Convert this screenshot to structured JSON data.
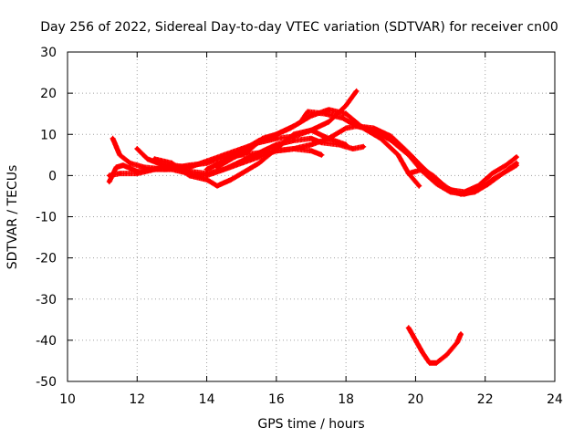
{
  "chart_data": {
    "type": "scatter",
    "title": "Day 256 of 2022, Sidereal Day-to-day VTEC variation (SDTVAR) for receiver cn00",
    "xlabel": "GPS time / hours",
    "ylabel": "SDTVAR / TECUs",
    "xlim": [
      10,
      24
    ],
    "ylim": [
      -50,
      30
    ],
    "xticks": [
      10,
      12,
      14,
      16,
      18,
      20,
      22,
      24
    ],
    "yticks": [
      -50,
      -40,
      -30,
      -20,
      -10,
      0,
      10,
      20,
      30
    ],
    "xtick_labels": [
      "10",
      "12",
      "14",
      "16",
      "18",
      "20",
      "22",
      "24"
    ],
    "ytick_labels": [
      "-50",
      "-40",
      "-30",
      "-20",
      "-10",
      "0",
      "10",
      "20",
      "30"
    ],
    "grid": true,
    "marker": "+",
    "color": "#ff0000",
    "series": [
      {
        "name": "track-1",
        "points": [
          [
            11.2,
            0
          ],
          [
            11.5,
            0.5
          ],
          [
            12.0,
            0.5
          ],
          [
            12.5,
            1.5
          ],
          [
            13.0,
            1.5
          ],
          [
            13.5,
            0.5
          ],
          [
            14.0,
            0
          ],
          [
            14.5,
            1.5
          ],
          [
            15.0,
            3.5
          ],
          [
            15.5,
            5.5
          ],
          [
            16.0,
            7.5
          ],
          [
            16.5,
            8.5
          ],
          [
            17.0,
            9.0
          ],
          [
            17.3,
            8.0
          ],
          [
            17.8,
            7.5
          ],
          [
            18.2,
            6.5
          ],
          [
            18.5,
            7.0
          ]
        ]
      },
      {
        "name": "track-2",
        "points": [
          [
            11.2,
            -1.5
          ],
          [
            11.4,
            2.0
          ],
          [
            11.6,
            2.5
          ],
          [
            12.0,
            1.0
          ],
          [
            12.5,
            1.5
          ],
          [
            13.0,
            2.5
          ],
          [
            13.5,
            2.0
          ],
          [
            14.0,
            3.5
          ],
          [
            14.5,
            5.0
          ],
          [
            15.0,
            6.5
          ],
          [
            15.5,
            8.0
          ],
          [
            16.0,
            9.0
          ],
          [
            16.5,
            9.5
          ],
          [
            17.0,
            11.0
          ],
          [
            17.5,
            13.0
          ],
          [
            18.0,
            17.0
          ],
          [
            18.3,
            20.5
          ]
        ]
      },
      {
        "name": "track-3",
        "points": [
          [
            11.3,
            9.0
          ],
          [
            11.5,
            5.0
          ],
          [
            11.8,
            3.0
          ],
          [
            12.2,
            2.0
          ],
          [
            12.8,
            1.5
          ],
          [
            13.5,
            2.5
          ],
          [
            14.0,
            3.0
          ],
          [
            14.5,
            4.5
          ],
          [
            15.0,
            5.0
          ],
          [
            15.5,
            5.5
          ],
          [
            16.0,
            6.0
          ],
          [
            16.5,
            6.5
          ],
          [
            17.0,
            6.0
          ],
          [
            17.3,
            5.0
          ]
        ]
      },
      {
        "name": "track-4",
        "points": [
          [
            12.0,
            6.5
          ],
          [
            12.3,
            4.0
          ],
          [
            12.6,
            3.0
          ],
          [
            13.0,
            2.0
          ],
          [
            13.5,
            1.0
          ],
          [
            14.0,
            0.5
          ],
          [
            14.5,
            1.5
          ],
          [
            15.0,
            3.0
          ],
          [
            15.5,
            4.5
          ],
          [
            16.0,
            6.0
          ],
          [
            16.5,
            6.5
          ],
          [
            17.0,
            7.5
          ],
          [
            17.5,
            9.0
          ],
          [
            18.0,
            11.5
          ],
          [
            18.3,
            12.0
          ],
          [
            18.8,
            11.0
          ],
          [
            19.3,
            8.5
          ],
          [
            19.8,
            5.0
          ],
          [
            20.2,
            1.0
          ],
          [
            20.6,
            -2.0
          ],
          [
            21.0,
            -4.0
          ],
          [
            21.4,
            -4.5
          ],
          [
            21.8,
            -3.5
          ],
          [
            22.2,
            -1.0
          ],
          [
            22.6,
            1.0
          ],
          [
            22.9,
            2.5
          ]
        ]
      },
      {
        "name": "track-5",
        "points": [
          [
            12.5,
            4.0
          ],
          [
            13.0,
            3.0
          ],
          [
            13.5,
            0
          ],
          [
            14.0,
            -1.0
          ],
          [
            14.3,
            -2.5
          ],
          [
            14.7,
            -1.0
          ],
          [
            15.0,
            0.5
          ],
          [
            15.5,
            3.0
          ],
          [
            16.0,
            6.5
          ],
          [
            16.5,
            10.0
          ],
          [
            17.0,
            11.0
          ],
          [
            17.5,
            9.0
          ],
          [
            18.0,
            7.5
          ]
        ]
      },
      {
        "name": "track-6",
        "points": [
          [
            14.3,
            2.0
          ],
          [
            14.8,
            4.5
          ],
          [
            15.2,
            6.0
          ],
          [
            15.6,
            9.0
          ],
          [
            16.0,
            10.0
          ],
          [
            16.4,
            11.5
          ],
          [
            16.7,
            13.0
          ],
          [
            16.9,
            15.5
          ],
          [
            17.4,
            15.0
          ],
          [
            17.9,
            14.0
          ],
          [
            18.3,
            12.0
          ],
          [
            18.8,
            11.5
          ],
          [
            19.3,
            9.5
          ],
          [
            19.8,
            5.5
          ],
          [
            20.2,
            2.0
          ],
          [
            20.6,
            -1.0
          ],
          [
            21.0,
            -3.5
          ],
          [
            21.4,
            -4.0
          ],
          [
            21.8,
            -2.5
          ],
          [
            22.2,
            0.5
          ],
          [
            22.6,
            2.5
          ],
          [
            22.9,
            4.5
          ]
        ]
      },
      {
        "name": "track-7",
        "points": [
          [
            14.0,
            1.5
          ],
          [
            14.5,
            3.5
          ],
          [
            15.0,
            6.0
          ],
          [
            15.5,
            8.5
          ],
          [
            16.0,
            10.0
          ],
          [
            16.5,
            12.0
          ],
          [
            17.0,
            14.5
          ],
          [
            17.5,
            16.0
          ],
          [
            18.0,
            15.0
          ],
          [
            18.5,
            11.5
          ],
          [
            19.0,
            9.0
          ],
          [
            19.5,
            5.0
          ],
          [
            19.8,
            0.5
          ],
          [
            20.1,
            -2.5
          ]
        ]
      },
      {
        "name": "track-8",
        "points": [
          [
            19.8,
            0.5
          ],
          [
            20.2,
            1.5
          ],
          [
            20.5,
            0
          ],
          [
            20.9,
            -3.0
          ],
          [
            21.3,
            -4.5
          ],
          [
            21.7,
            -4.0
          ],
          [
            22.1,
            -2.0
          ],
          [
            22.5,
            0.5
          ],
          [
            22.9,
            3.0
          ]
        ]
      },
      {
        "name": "track-9",
        "points": [
          [
            19.8,
            -37.0
          ],
          [
            20.0,
            -40.0
          ],
          [
            20.2,
            -43.0
          ],
          [
            20.4,
            -45.5
          ],
          [
            20.6,
            -45.5
          ],
          [
            20.9,
            -43.5
          ],
          [
            21.2,
            -40.5
          ],
          [
            21.3,
            -38.5
          ]
        ]
      }
    ]
  }
}
